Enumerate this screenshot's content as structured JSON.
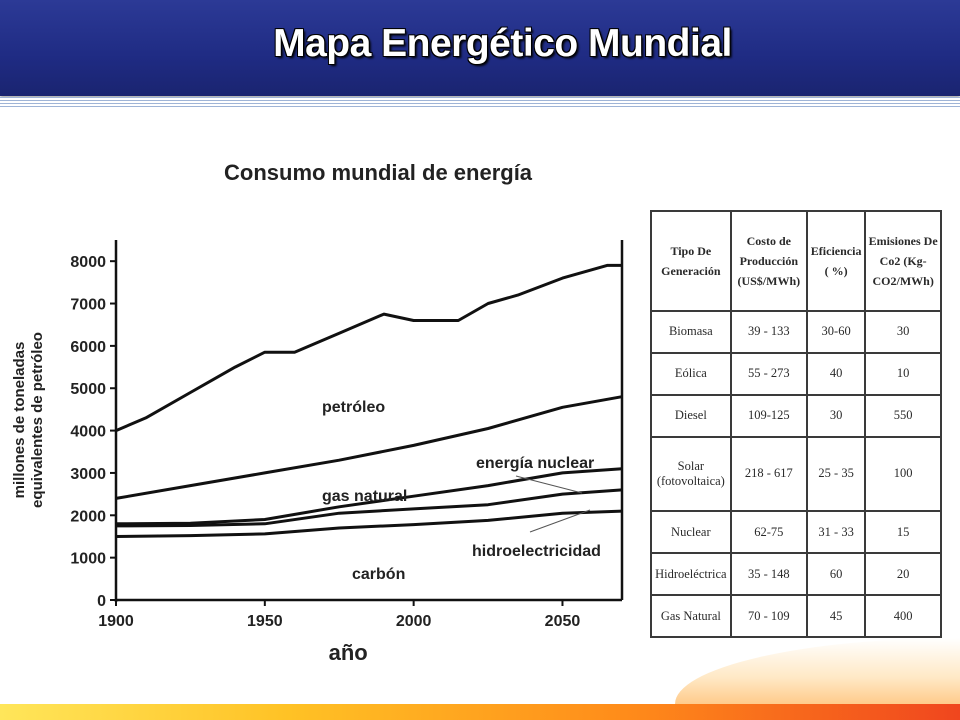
{
  "slide": {
    "title": "Mapa Energético Mundial"
  },
  "colors": {
    "header_blue": "#1f2b83",
    "line_color": "#111111",
    "accent_bar": "#ffc225"
  },
  "chart_data": {
    "type": "line",
    "title": "Consumo mundial de energía",
    "xlabel": "año",
    "ylabel_lines": [
      "millones de toneladas",
      "equivalentes de petróleo"
    ],
    "xlim": [
      1900,
      2070
    ],
    "ylim": [
      0,
      8500
    ],
    "x_ticks": [
      1900,
      1950,
      2000,
      2050
    ],
    "y_ticks": [
      0,
      1000,
      2000,
      3000,
      4000,
      5000,
      6000,
      7000,
      8000
    ],
    "grid": false,
    "boundaries": [
      {
        "x": [
          1900,
          1925,
          1950,
          1975,
          2000,
          2025,
          2050,
          2070
        ],
        "y": [
          1500,
          1520,
          1560,
          1700,
          1780,
          1880,
          2050,
          2100
        ]
      },
      {
        "x": [
          1900,
          1925,
          1950,
          1975,
          2000,
          2025,
          2050,
          2070
        ],
        "y": [
          1750,
          1760,
          1800,
          2050,
          2150,
          2250,
          2500,
          2600
        ]
      },
      {
        "x": [
          1900,
          1925,
          1950,
          1975,
          2000,
          2025,
          2050,
          2070
        ],
        "y": [
          1800,
          1810,
          1900,
          2200,
          2450,
          2700,
          3000,
          3100
        ]
      },
      {
        "x": [
          1900,
          1925,
          1950,
          1975,
          2000,
          2025,
          2050,
          2070
        ],
        "y": [
          2400,
          2700,
          3000,
          3300,
          3650,
          4050,
          4550,
          4800
        ]
      },
      {
        "x": [
          1900,
          1910,
          1925,
          1940,
          1950,
          1960,
          1975,
          1990,
          2000,
          2015,
          2025,
          2035,
          2050,
          2065,
          2070
        ],
        "y": [
          4000,
          4300,
          4900,
          5500,
          5850,
          5850,
          6300,
          6750,
          6600,
          6600,
          7000,
          7200,
          7600,
          7900,
          7900
        ]
      }
    ],
    "annotations": [
      "petróleo",
      "energía nuclear",
      "gas natural",
      "hidroelectricidad",
      "carbón"
    ]
  },
  "table": {
    "headers": [
      "Tipo De Generación",
      "Costo de Producción (US$/MWh)",
      "Eficiencia ( %)",
      "Emisiones De Co2 (Kg-CO2/MWh)"
    ],
    "rows": [
      [
        "Biomasa",
        "39 - 133",
        "30-60",
        "30"
      ],
      [
        "Eólica",
        "55 - 273",
        "40",
        "10"
      ],
      [
        "Diesel",
        "109-125",
        "30",
        "550"
      ],
      [
        "Solar (fotovoltaica)",
        "218 - 617",
        "25 - 35",
        "100"
      ],
      [
        "Nuclear",
        "62-75",
        "31 - 33",
        "15"
      ],
      [
        "Hidroeléctrica",
        "35 - 148",
        "60",
        "20"
      ],
      [
        "Gas Natural",
        "70 - 109",
        "45",
        "400"
      ]
    ]
  }
}
